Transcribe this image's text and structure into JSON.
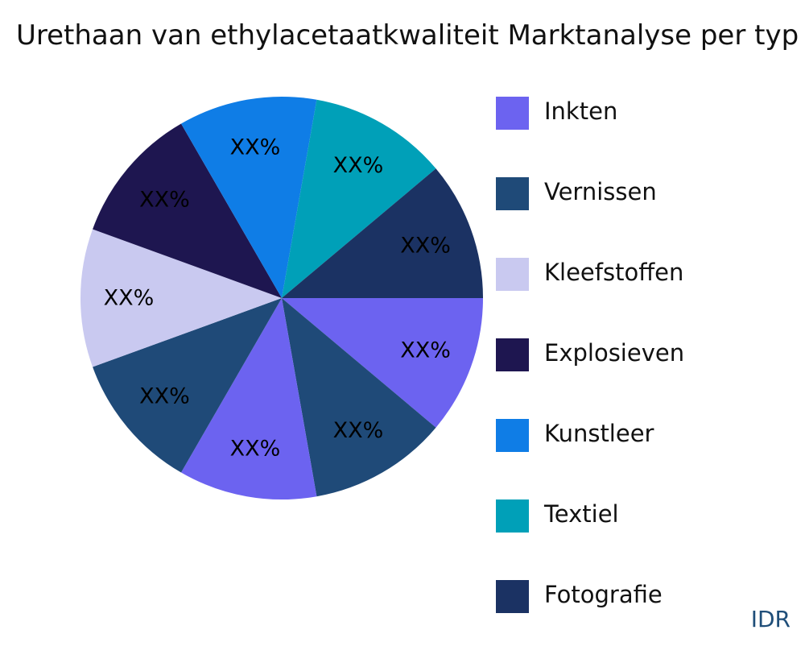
{
  "chart_data": {
    "type": "pie",
    "title": "Urethaan van ethylacetaatkwaliteit Marktanalyse per typ",
    "slices": [
      {
        "label": "Inkten",
        "value": 1,
        "display": "XX%",
        "color": "#6c63f0"
      },
      {
        "label": "Vernissen",
        "value": 1,
        "display": "XX%",
        "color": "#1f4a78"
      },
      {
        "label": "Inkten",
        "value": 1,
        "display": "XX%",
        "color": "#6c63f0"
      },
      {
        "label": "Vernissen",
        "value": 1,
        "display": "XX%",
        "color": "#1f4a78"
      },
      {
        "label": "Kleefstoffen",
        "value": 1,
        "display": "XX%",
        "color": "#c9c9f0"
      },
      {
        "label": "Explosieven",
        "value": 1,
        "display": "XX%",
        "color": "#1e1650"
      },
      {
        "label": "Kunstleer",
        "value": 1,
        "display": "XX%",
        "color": "#0f7de6"
      },
      {
        "label": "Textiel",
        "value": 1,
        "display": "XX%",
        "color": "#00a0b8"
      },
      {
        "label": "Fotografie",
        "value": 1,
        "display": "XX%",
        "color": "#1b3263"
      }
    ],
    "legend": {
      "position": "right",
      "entries": [
        {
          "label": "Inkten",
          "color": "#6c63f0"
        },
        {
          "label": "Vernissen",
          "color": "#1f4a78"
        },
        {
          "label": "Kleefstoffen",
          "color": "#c9c9f0"
        },
        {
          "label": "Explosieven",
          "color": "#1e1650"
        },
        {
          "label": "Kunstleer",
          "color": "#0f7de6"
        },
        {
          "label": "Textiel",
          "color": "#00a0b8"
        },
        {
          "label": "Fotografie",
          "color": "#1b3263"
        }
      ]
    }
  },
  "watermark": "IDR"
}
